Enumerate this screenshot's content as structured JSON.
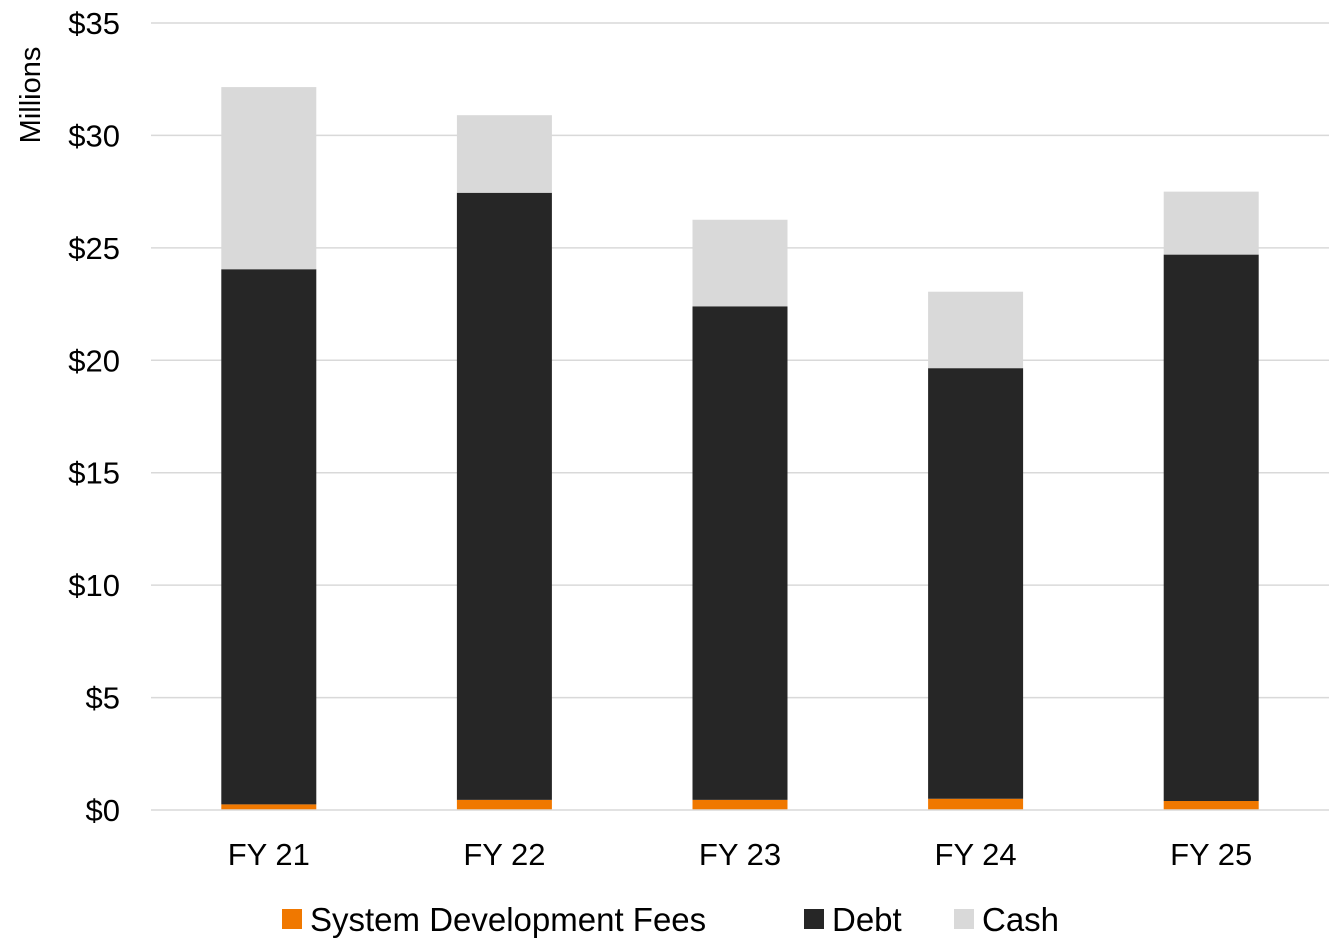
{
  "chart_data": {
    "type": "bar",
    "stacked": true,
    "categories": [
      "FY 21",
      "FY 22",
      "FY 23",
      "FY 24",
      "FY 25"
    ],
    "series": [
      {
        "name": "System Development Fees",
        "color": "#f07800",
        "values": [
          0.25,
          0.45,
          0.45,
          0.5,
          0.4
        ]
      },
      {
        "name": "Debt",
        "color": "#262626",
        "values": [
          23.8,
          27.0,
          21.95,
          19.15,
          24.3
        ]
      },
      {
        "name": "Cash",
        "color": "#d9d9d9",
        "values": [
          8.1,
          3.45,
          3.85,
          3.4,
          2.8
        ]
      }
    ],
    "y_ticks": [
      "$0",
      "$5",
      "$10",
      "$15",
      "$20",
      "$25",
      "$30",
      "$35"
    ],
    "ylim": [
      0,
      35
    ],
    "y_unit_label": "Millions",
    "grid": true,
    "gridline_color": "#d9d9d9",
    "legend_position": "bottom"
  }
}
